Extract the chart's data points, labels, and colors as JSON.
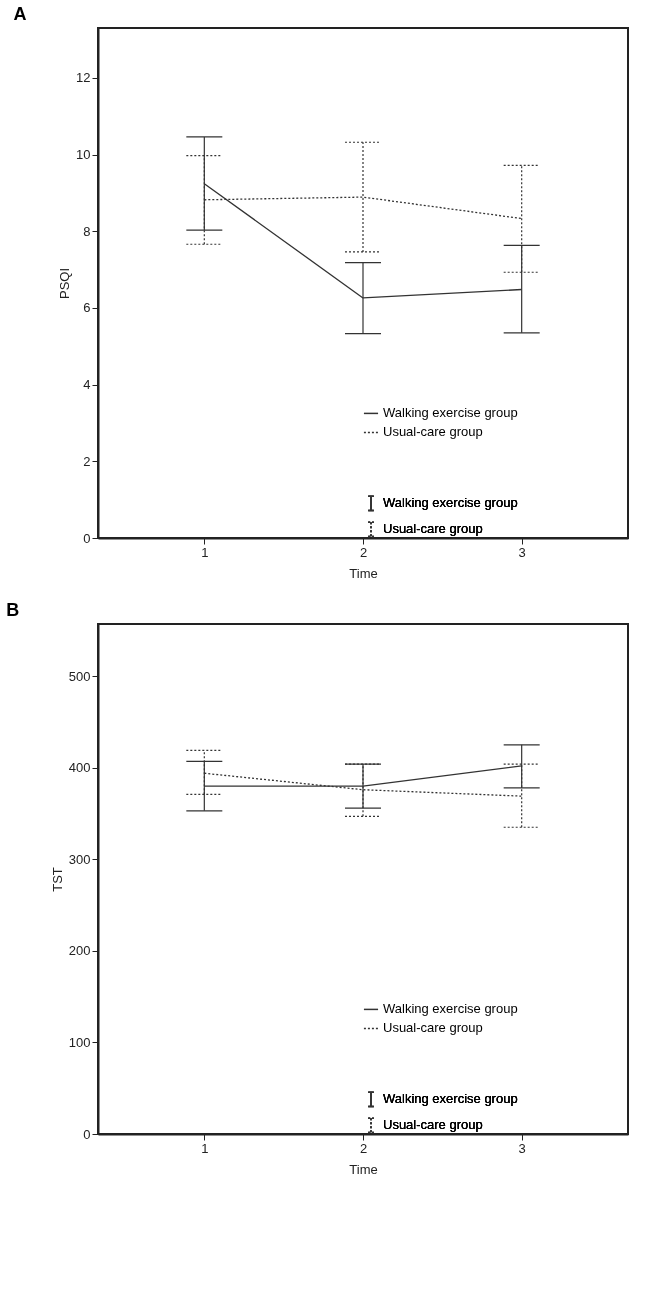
{
  "chart_data": [
    {
      "type": "line",
      "title": "A",
      "xlabel": "Time",
      "ylabel": "PSQI",
      "x": [
        1,
        2,
        3
      ],
      "xlim": [
        0.33,
        3.67
      ],
      "xticks": [
        1,
        2,
        3
      ],
      "ylim": [
        0,
        13.3
      ],
      "yticks": [
        0,
        2,
        4,
        6,
        8,
        10,
        12
      ],
      "grid": false,
      "legend": "bottom right",
      "marker": "none",
      "series": [
        {
          "name": "Walking exercise group",
          "color": "#333333",
          "line_style": "solid",
          "values": [
            9.24,
            6.26,
            6.48
          ],
          "errors": [
            [
              8.03,
              10.46
            ],
            [
              5.33,
              7.18
            ],
            [
              5.35,
              7.63
            ]
          ]
        },
        {
          "name": "Usual-care group",
          "color": "#333333",
          "line_style": "dotted",
          "values": [
            8.82,
            8.89,
            8.33
          ],
          "errors": [
            [
              7.66,
              9.97
            ],
            [
              7.46,
              10.32
            ],
            [
              6.93,
              9.72
            ]
          ]
        }
      ]
    },
    {
      "type": "line",
      "title": "B",
      "xlabel": "Time",
      "ylabel": "TST",
      "x": [
        1,
        2,
        3
      ],
      "xlim": [
        0.33,
        3.67
      ],
      "xticks": [
        1,
        2,
        3
      ],
      "ylim": [
        0,
        557
      ],
      "yticks": [
        0,
        100,
        200,
        300,
        400,
        500
      ],
      "grid": false,
      "legend": "bottom right",
      "marker": "none",
      "series": [
        {
          "name": "Walking exercise group",
          "color": "#333333",
          "line_style": "solid",
          "values": [
            380,
            380,
            402
          ],
          "errors": [
            [
              353,
              407
            ],
            [
              356,
              404
            ],
            [
              378,
              425
            ]
          ]
        },
        {
          "name": "Usual-care group",
          "color": "#333333",
          "line_style": "dotted",
          "values": [
            394,
            376,
            369
          ],
          "errors": [
            [
              371,
              419
            ],
            [
              347,
              404
            ],
            [
              335,
              404
            ]
          ]
        }
      ]
    }
  ]
}
